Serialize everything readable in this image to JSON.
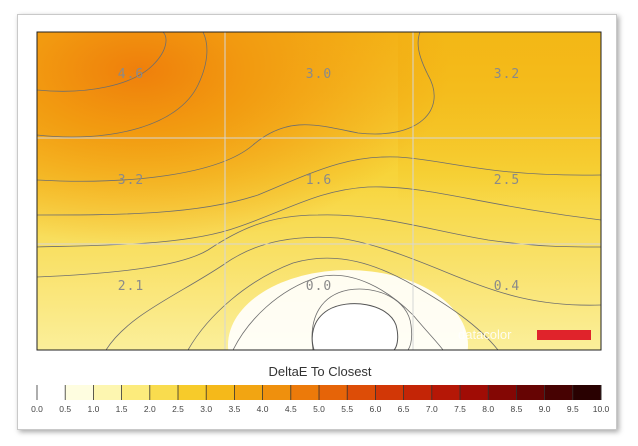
{
  "chart_data": {
    "type": "heatmap",
    "title": "",
    "rows": 3,
    "cols": 3,
    "values": [
      [
        4.6,
        3.0,
        3.2
      ],
      [
        3.2,
        1.6,
        2.5
      ],
      [
        2.1,
        0.0,
        0.4
      ]
    ],
    "value_labels": [
      [
        "4.6",
        "3.0",
        "3.2"
      ],
      [
        "3.2",
        "1.6",
        "2.5"
      ],
      [
        "2.1",
        "0.0",
        "0.4"
      ]
    ],
    "contours": true,
    "grid": true,
    "colorbar": {
      "title": "DeltaE To Closest",
      "min": 0,
      "max": 10,
      "step": 0.5,
      "tick_labels": [
        "0.0",
        "0.5",
        "1.0",
        "1.5",
        "2.0",
        "2.5",
        "3.0",
        "3.5",
        "4.0",
        "4.5",
        "5.0",
        "5.5",
        "6.0",
        "6.5",
        "7.0",
        "7.5",
        "8.0",
        "8.5",
        "9.0",
        "9.5",
        "10.0"
      ],
      "colors": [
        "#ffffff",
        "#fefde0",
        "#fdf6b0",
        "#fceb7c",
        "#f9dc4e",
        "#f7cb2a",
        "#f5b91a",
        "#f2a512",
        "#ef900d",
        "#ec7a0a",
        "#e66408",
        "#dd4d07",
        "#d23706",
        "#c42506",
        "#b51706",
        "#a00c05",
        "#840704",
        "#660403",
        "#470202",
        "#290101"
      ]
    },
    "watermark": "datacolor",
    "marker_color": "#e0232b"
  }
}
